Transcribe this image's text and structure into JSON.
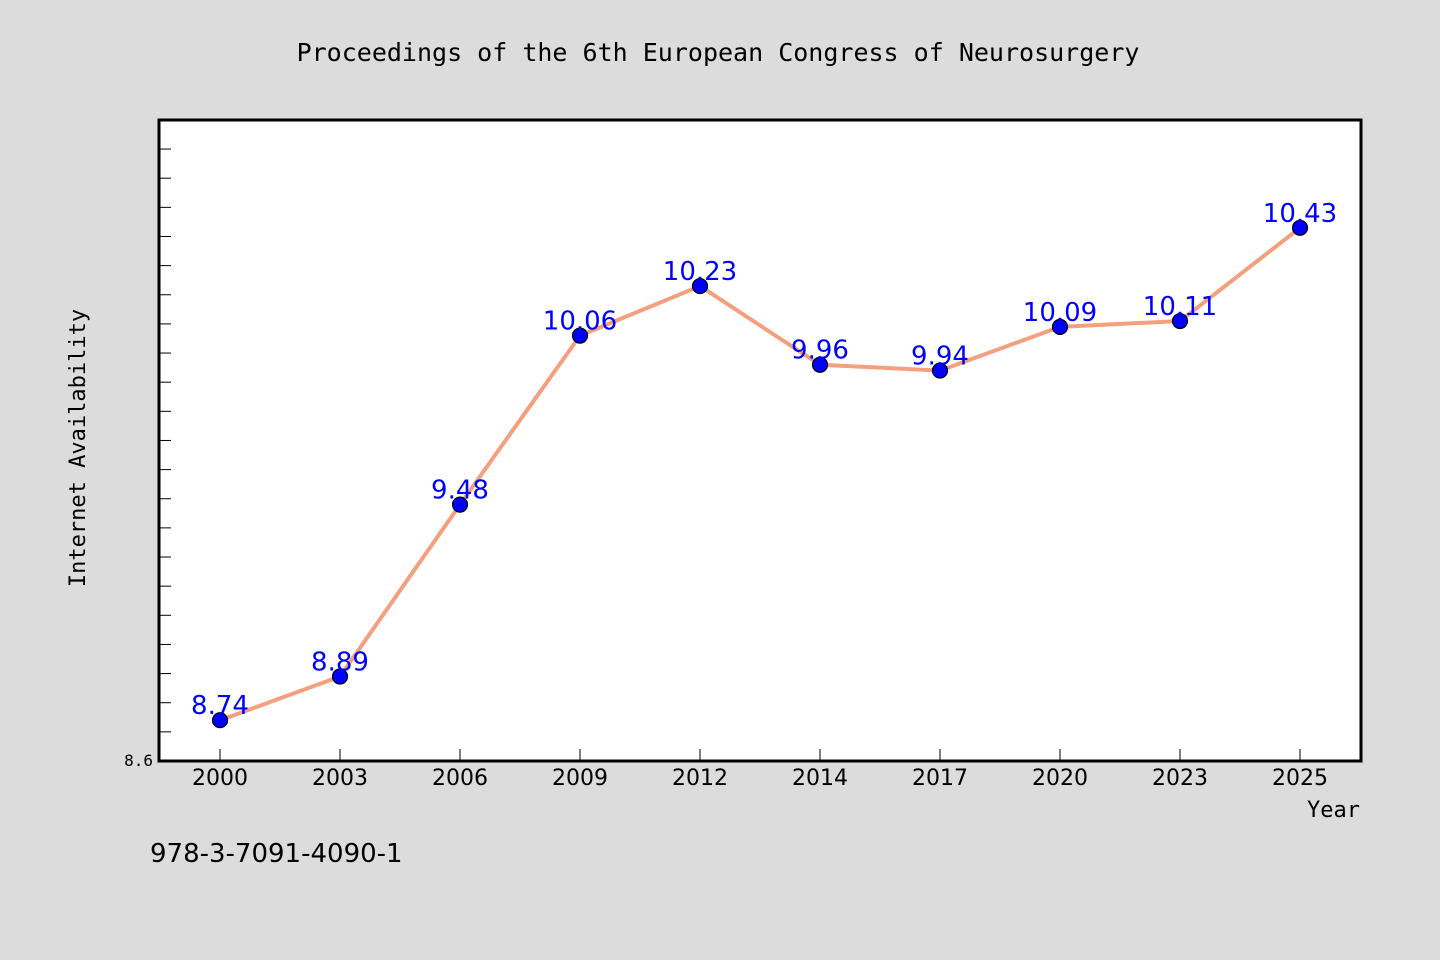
{
  "chart_data": {
    "type": "line",
    "title": "Proceedings of the 6th European Congress of Neurosurgery",
    "xlabel": "Year",
    "ylabel": "Internet Availability",
    "categories": [
      "2000",
      "2003",
      "2006",
      "2009",
      "2012",
      "2014",
      "2017",
      "2020",
      "2023",
      "2025"
    ],
    "series": [
      {
        "values": [
          8.74,
          8.89,
          9.48,
          10.06,
          10.23,
          9.96,
          9.94,
          10.09,
          10.11,
          10.43
        ],
        "data_labels": [
          "8.74",
          "8.89",
          "9.48",
          "10.06",
          "10.23",
          "9.96",
          "9.94",
          "10.09",
          "10.11",
          "10.43"
        ],
        "line_color": "#f4a07e",
        "marker_color": "#0000ff",
        "label_color": "#0000ff"
      }
    ],
    "ylim": [
      8.6,
      10.8
    ],
    "ytick_labels": [
      "8.6"
    ],
    "grid": false,
    "legend": false
  },
  "footer_text": "978-3-7091-4090-1",
  "colors": {
    "background": "#dcdcdc",
    "plot_background": "#ffffff"
  }
}
